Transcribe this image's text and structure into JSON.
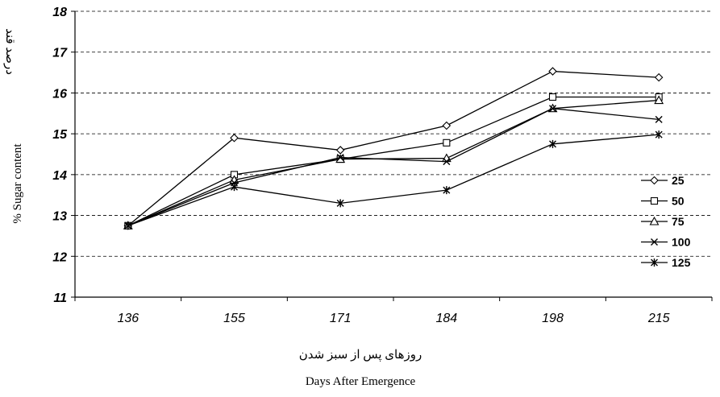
{
  "chart_data": {
    "type": "line",
    "x": [
      "136",
      "155",
      "171",
      "184",
      "198",
      "215"
    ],
    "ylim": [
      11,
      18
    ],
    "yticks": [
      11,
      12,
      13,
      14,
      15,
      16,
      17,
      18
    ],
    "ylabel": "% Sugar content",
    "ylabel_secondary": "درصد قند",
    "xlabel": "Days After Emergence",
    "xlabel_secondary": "روزهای پس از سبز شدن",
    "grid": "horizontal dashed",
    "legend_position": "right",
    "series": [
      {
        "name": "25",
        "marker": "diamond",
        "values": [
          12.75,
          14.9,
          14.6,
          15.2,
          16.53,
          16.38
        ]
      },
      {
        "name": "50",
        "marker": "square",
        "values": [
          12.75,
          14.0,
          14.38,
          14.78,
          15.9,
          15.9
        ]
      },
      {
        "name": "75",
        "marker": "triangle",
        "values": [
          12.75,
          13.87,
          14.38,
          14.4,
          15.62,
          15.82
        ]
      },
      {
        "name": "100",
        "marker": "x",
        "values": [
          12.75,
          13.8,
          14.42,
          14.32,
          15.62,
          15.35
        ]
      },
      {
        "name": "125",
        "marker": "asterisk",
        "values": [
          12.75,
          13.7,
          13.3,
          13.62,
          14.75,
          14.98
        ]
      }
    ]
  }
}
